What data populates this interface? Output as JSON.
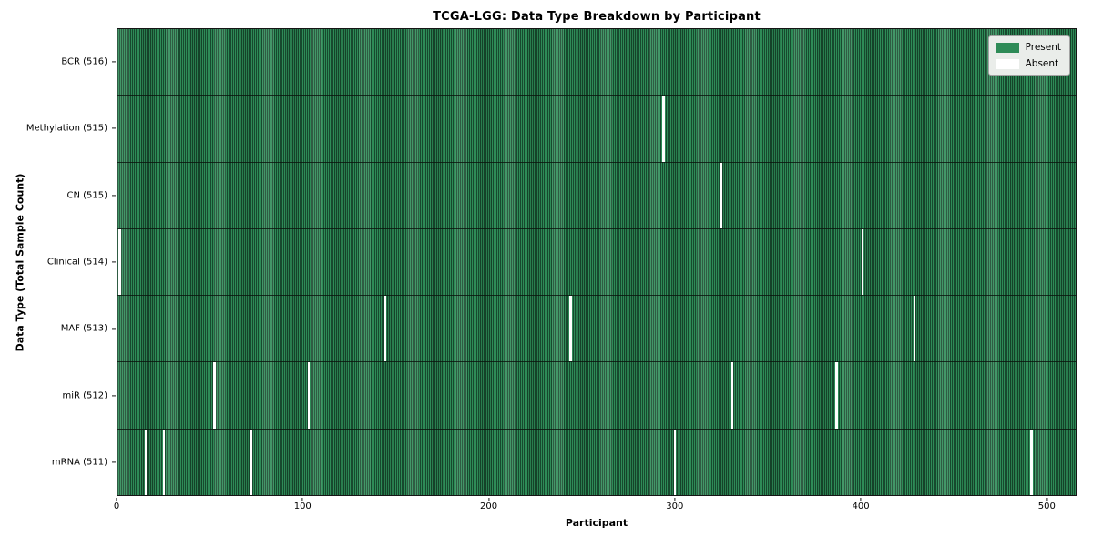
{
  "chart_data": {
    "type": "heatmap",
    "title": "TCGA-LGG: Data Type Breakdown by Participant",
    "xlabel": "Participant",
    "ylabel": "Data Type (Total Sample Count)",
    "x_range": [
      0,
      516
    ],
    "x_ticks": [
      0,
      100,
      200,
      300,
      400,
      500
    ],
    "n_participants": 516,
    "cell_states": [
      "Present",
      "Absent"
    ],
    "legend": [
      {
        "label": "Present",
        "color": "#2e8b57"
      },
      {
        "label": "Absent",
        "color": "#ffffff"
      }
    ],
    "legend_position": "upper right",
    "grid": false,
    "rows": [
      {
        "data_type": "BCR",
        "total_samples": 516,
        "label": "BCR (516)",
        "absent_participants": []
      },
      {
        "data_type": "Methylation",
        "total_samples": 515,
        "label": "Methylation (515)",
        "absent_participants": [
          294
        ]
      },
      {
        "data_type": "CN",
        "total_samples": 515,
        "label": "CN (515)",
        "absent_participants": [
          325
        ]
      },
      {
        "data_type": "Clinical",
        "total_samples": 514,
        "label": "Clinical (514)",
        "absent_participants": [
          1,
          401
        ]
      },
      {
        "data_type": "MAF",
        "total_samples": 513,
        "label": "MAF (513)",
        "absent_participants": [
          144,
          244,
          429
        ]
      },
      {
        "data_type": "miR",
        "total_samples": 512,
        "label": "miR (512)",
        "absent_participants": [
          52,
          103,
          331,
          387
        ]
      },
      {
        "data_type": "mRNA",
        "total_samples": 511,
        "label": "mRNA (511)",
        "absent_participants": [
          15,
          25,
          72,
          300,
          492
        ]
      }
    ],
    "colors": {
      "present": "#2e8b57",
      "present_dark": "#17492e",
      "absent": "#ffffff",
      "axis": "#151515",
      "legend_bg": "#eaedea",
      "legend_border": "#a3a3a3"
    }
  }
}
